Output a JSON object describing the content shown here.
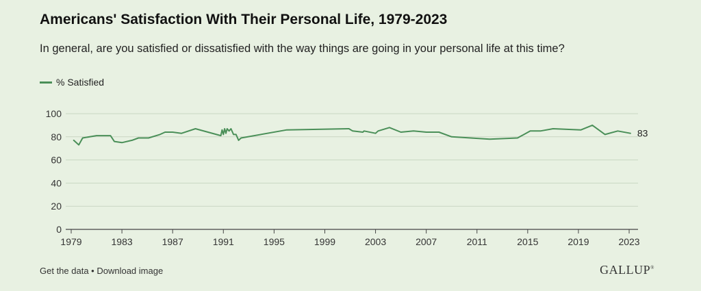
{
  "header": {
    "title": "Americans' Satisfaction With Their Personal Life, 1979-2023",
    "subtitle": "In general, are you satisfied or dissatisfied with the way things are going in your personal life at this time?"
  },
  "legend": {
    "label": "% Satisfied",
    "color": "#4a8f58"
  },
  "footer": {
    "get_data": "Get the data",
    "separator": " • ",
    "download": "Download image",
    "logo": "GALLUP",
    "logo_mark": "®"
  },
  "chart_data": {
    "type": "line",
    "title": "Americans' Satisfaction With Their Personal Life, 1979-2023",
    "xlabel": "",
    "ylabel": "",
    "xlim": [
      1979,
      2023.7
    ],
    "ylim": [
      0,
      100
    ],
    "x_ticks": [
      1979,
      1983,
      1987,
      1991,
      1995,
      1999,
      2003,
      2007,
      2011,
      2015,
      2019,
      2023
    ],
    "y_ticks": [
      0,
      20,
      40,
      60,
      80,
      100
    ],
    "grid": true,
    "legend_position": "top-left",
    "end_label": "83",
    "series": [
      {
        "name": "% Satisfied",
        "color": "#4a8f58",
        "points": [
          [
            1979.2,
            77
          ],
          [
            1979.6,
            73
          ],
          [
            1979.9,
            79
          ],
          [
            1981.0,
            81
          ],
          [
            1982.1,
            81
          ],
          [
            1982.4,
            76
          ],
          [
            1983.0,
            75
          ],
          [
            1983.8,
            77
          ],
          [
            1984.3,
            79
          ],
          [
            1985.1,
            79
          ],
          [
            1986.0,
            82
          ],
          [
            1986.4,
            84
          ],
          [
            1987.0,
            84
          ],
          [
            1987.7,
            83
          ],
          [
            1988.8,
            87
          ],
          [
            1990.8,
            81
          ],
          [
            1990.9,
            86
          ],
          [
            1991.0,
            82
          ],
          [
            1991.1,
            87
          ],
          [
            1991.2,
            83
          ],
          [
            1991.3,
            87
          ],
          [
            1991.45,
            85
          ],
          [
            1991.6,
            87
          ],
          [
            1991.8,
            82
          ],
          [
            1992.0,
            82
          ],
          [
            1992.2,
            77
          ],
          [
            1992.4,
            79
          ],
          [
            1996.0,
            86
          ],
          [
            2000.9,
            87
          ],
          [
            2001.2,
            85
          ],
          [
            2002.0,
            84
          ],
          [
            2002.1,
            85
          ],
          [
            2003.0,
            83
          ],
          [
            2003.2,
            85
          ],
          [
            2004.1,
            88
          ],
          [
            2005.0,
            84
          ],
          [
            2006.0,
            85
          ],
          [
            2007.0,
            84
          ],
          [
            2008.0,
            84
          ],
          [
            2009.0,
            80
          ],
          [
            2012.0,
            78
          ],
          [
            2014.2,
            79
          ],
          [
            2015.2,
            85
          ],
          [
            2016.0,
            85
          ],
          [
            2017.0,
            87
          ],
          [
            2019.2,
            86
          ],
          [
            2020.1,
            90
          ],
          [
            2021.1,
            82
          ],
          [
            2022.1,
            85
          ],
          [
            2023.1,
            83
          ]
        ]
      }
    ]
  }
}
